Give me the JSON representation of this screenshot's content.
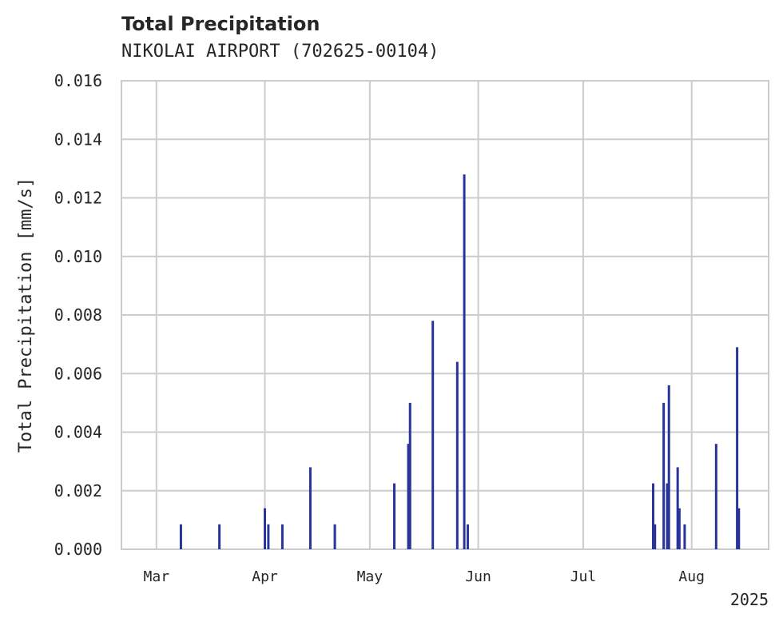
{
  "chart_data": {
    "type": "bar",
    "title": "Total Precipitation",
    "subtitle": "NIKOLAI AIRPORT (702625-00104)",
    "xlabel": "",
    "ylabel": "Total Precipitation [mm/s]",
    "ylim": [
      0,
      0.016
    ],
    "xlim": [
      "2025-02-19",
      "2025-08-23"
    ],
    "grid": true,
    "yticks": [
      "0.000",
      "0.002",
      "0.004",
      "0.006",
      "0.008",
      "0.010",
      "0.012",
      "0.014",
      "0.016"
    ],
    "xticks": [
      {
        "date": "2025-03-01",
        "label": "Mar"
      },
      {
        "date": "2025-04-01",
        "label": "Apr"
      },
      {
        "date": "2025-05-01",
        "label": "May"
      },
      {
        "date": "2025-06-01",
        "label": "Jun"
      },
      {
        "date": "2025-07-01",
        "label": "Jul"
      },
      {
        "date": "2025-08-01",
        "label": "Aug"
      }
    ],
    "year_label": "2025",
    "color": "#28349a",
    "series": [
      {
        "name": "Total Precipitation",
        "points": [
          {
            "date": "2025-03-08",
            "value": 0.00085
          },
          {
            "date": "2025-03-19",
            "value": 0.00085
          },
          {
            "date": "2025-04-01",
            "value": 0.0014
          },
          {
            "date": "2025-04-02",
            "value": 0.00085
          },
          {
            "date": "2025-04-06",
            "value": 0.00085
          },
          {
            "date": "2025-04-14",
            "value": 0.0028
          },
          {
            "date": "2025-04-21",
            "value": 0.00085
          },
          {
            "date": "2025-05-08",
            "value": 0.00225
          },
          {
            "date": "2025-05-12",
            "value": 0.0036
          },
          {
            "date": "2025-05-12T12",
            "value": 0.005
          },
          {
            "date": "2025-05-19",
            "value": 0.0078
          },
          {
            "date": "2025-05-26",
            "value": 0.0064
          },
          {
            "date": "2025-05-28",
            "value": 0.0128
          },
          {
            "date": "2025-05-29",
            "value": 0.00085
          },
          {
            "date": "2025-07-21",
            "value": 0.00225
          },
          {
            "date": "2025-07-21T12",
            "value": 0.00085
          },
          {
            "date": "2025-07-24",
            "value": 0.005
          },
          {
            "date": "2025-07-25",
            "value": 0.00225
          },
          {
            "date": "2025-07-25T12",
            "value": 0.0056
          },
          {
            "date": "2025-07-28",
            "value": 0.0028
          },
          {
            "date": "2025-07-28T12",
            "value": 0.0014
          },
          {
            "date": "2025-07-30",
            "value": 0.00085
          },
          {
            "date": "2025-08-08",
            "value": 0.0036
          },
          {
            "date": "2025-08-14",
            "value": 0.0069
          },
          {
            "date": "2025-08-14T12",
            "value": 0.0014
          }
        ]
      }
    ]
  }
}
